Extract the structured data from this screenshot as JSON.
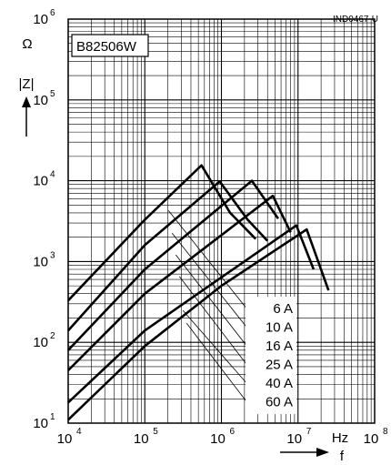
{
  "chart_data": {
    "type": "line",
    "doc_code": "IND0467-U",
    "part_number": "B82506W",
    "ylabel": "|Z|",
    "yunit": "Ω",
    "xlabel": "f",
    "xunit": "Hz",
    "xscale": "log",
    "yscale": "log",
    "xlim": [
      10000,
      100000000
    ],
    "ylim": [
      10,
      1000000
    ],
    "grid": true,
    "x_ticks": [
      {
        "base": "10",
        "exp": "4"
      },
      {
        "base": "10",
        "exp": "5"
      },
      {
        "base": "10",
        "exp": "6"
      },
      {
        "base": "10",
        "exp": "7"
      },
      {
        "base": "10",
        "exp": "8"
      }
    ],
    "y_ticks": [
      {
        "base": "10",
        "exp": "1"
      },
      {
        "base": "10",
        "exp": "2"
      },
      {
        "base": "10",
        "exp": "3"
      },
      {
        "base": "10",
        "exp": "4"
      },
      {
        "base": "10",
        "exp": "5"
      },
      {
        "base": "10",
        "exp": "6"
      }
    ],
    "series": [
      {
        "name": "6 A",
        "points": [
          [
            10000,
            330
          ],
          [
            100000,
            3300
          ],
          [
            550000,
            15500
          ],
          [
            1300000,
            4000
          ],
          [
            2800000,
            1900
          ]
        ]
      },
      {
        "name": "10 A",
        "points": [
          [
            10000,
            140
          ],
          [
            100000,
            1600
          ],
          [
            950000,
            9800
          ],
          [
            2200000,
            3300
          ],
          [
            4000000,
            1800
          ]
        ]
      },
      {
        "name": "16 A",
        "points": [
          [
            10000,
            80
          ],
          [
            100000,
            800
          ],
          [
            2500000,
            10000
          ],
          [
            5500000,
            3400
          ]
        ]
      },
      {
        "name": "25 A",
        "points": [
          [
            10000,
            45
          ],
          [
            100000,
            400
          ],
          [
            4700000,
            6500
          ],
          [
            8000000,
            2300
          ]
        ]
      },
      {
        "name": "40 A",
        "points": [
          [
            10000,
            18
          ],
          [
            100000,
            140
          ],
          [
            9500000,
            2800
          ],
          [
            16000000,
            800
          ]
        ]
      },
      {
        "name": "60 A",
        "points": [
          [
            10000,
            11
          ],
          [
            100000,
            90
          ],
          [
            1000000,
            500
          ],
          [
            13000000,
            2500
          ],
          [
            25000000,
            440
          ]
        ]
      }
    ]
  }
}
